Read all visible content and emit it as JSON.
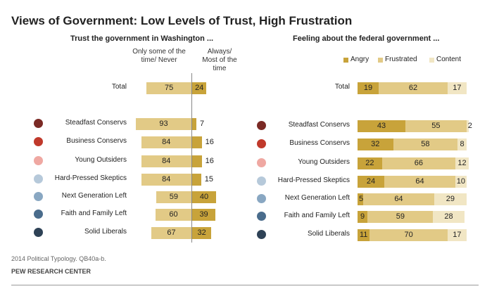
{
  "title": "Views of Government: Low Levels of Trust, High Frustration",
  "colors": {
    "angry": "#c8a33a",
    "frustrated": "#e2ca86",
    "content": "#f1e6c4",
    "never": "#e2ca86",
    "always": "#c8a33a",
    "dots": [
      "#7b2a25",
      "#c0392b",
      "#efa8a2",
      "#b6c9da",
      "#89a7c2",
      "#4a6c8c",
      "#2e4256"
    ]
  },
  "chart_data": [
    {
      "type": "bar",
      "title": "Trust the government in Washington ...",
      "column_headers": [
        "Only some of the time/ Never",
        "Always/ Most of the time"
      ],
      "categories": [
        "Total",
        "Steadfast Conservs",
        "Business Conservs",
        "Young Outsiders",
        "Hard-Pressed Skeptics",
        "Next Generation Left",
        "Faith and Family Left",
        "Solid Liberals"
      ],
      "series": [
        {
          "name": "Only some of the time/ Never",
          "values": [
            75,
            93,
            84,
            84,
            84,
            59,
            60,
            67
          ]
        },
        {
          "name": "Always/ Most of the time",
          "values": [
            24,
            7,
            16,
            16,
            15,
            40,
            39,
            32
          ]
        }
      ]
    },
    {
      "type": "bar",
      "title": "Feeling about the federal government ...",
      "categories": [
        "Total",
        "Steadfast Conservs",
        "Business Conservs",
        "Young Outsiders",
        "Hard-Pressed Skeptics",
        "Next Generation Left",
        "Faith and Family Left",
        "Solid Liberals"
      ],
      "legend": [
        "Angry",
        "Frustrated",
        "Content"
      ],
      "series": [
        {
          "name": "Angry",
          "values": [
            19,
            43,
            32,
            22,
            24,
            5,
            9,
            11
          ]
        },
        {
          "name": "Frustrated",
          "values": [
            62,
            55,
            58,
            66,
            64,
            64,
            59,
            70
          ]
        },
        {
          "name": "Content",
          "values": [
            17,
            2,
            8,
            12,
            10,
            29,
            28,
            17
          ]
        }
      ]
    }
  ],
  "footer": {
    "source": "2014 Political Typology. QB40a-b.",
    "org": "PEW RESEARCH CENTER"
  }
}
